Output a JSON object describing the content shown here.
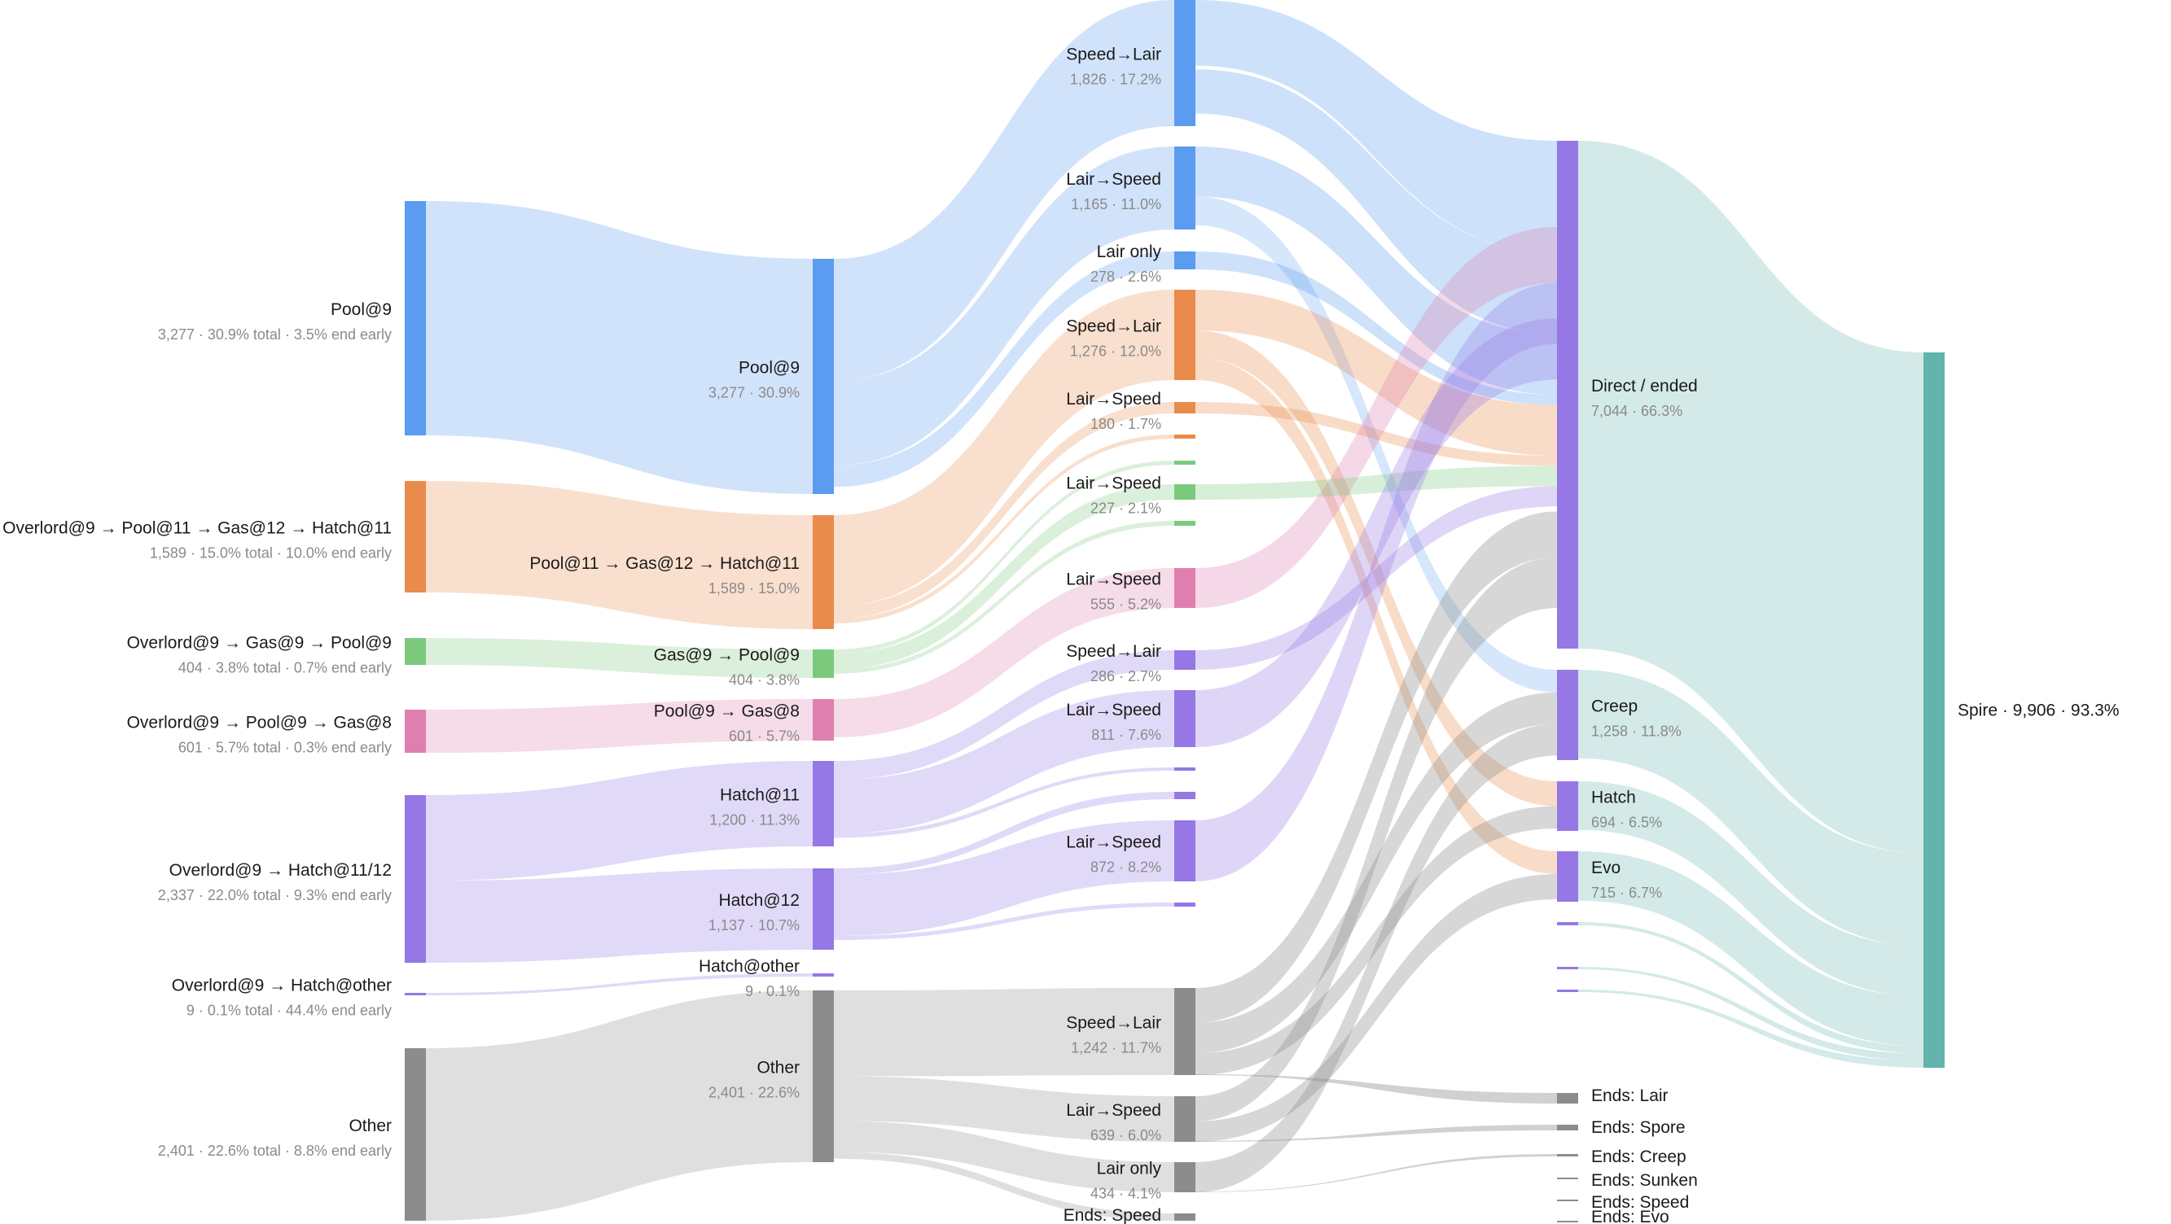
{
  "colors": {
    "blue": "#5b9bf0",
    "orange": "#e98b4a",
    "green": "#7cc97e",
    "pink": "#df7fb0",
    "purple": "#9577e6",
    "gray": "#8c8c8c",
    "teal": "#62b3ac"
  },
  "col0": [
    {
      "name": "Pool@9",
      "sub": "3,277 · 30.9% total · 3.5% end early",
      "color": "blue"
    },
    {
      "name": "Overlord@9 → Pool@11 → Gas@12 → Hatch@11",
      "sub": "1,589 · 15.0% total · 10.0% end early",
      "color": "orange"
    },
    {
      "name": "Overlord@9 → Gas@9 → Pool@9",
      "sub": "404 · 3.8% total · 0.7% end early",
      "color": "green"
    },
    {
      "name": "Overlord@9 → Pool@9 → Gas@8",
      "sub": "601 · 5.7% total · 0.3% end early",
      "color": "pink"
    },
    {
      "name": "Overlord@9 → Hatch@11/12",
      "sub": "2,337 · 22.0% total · 9.3% end early",
      "color": "purple"
    },
    {
      "name": "Overlord@9 → Hatch@other",
      "sub": "9 · 0.1% total · 44.4% end early",
      "color": "purple"
    },
    {
      "name": "Other",
      "sub": "2,401 · 22.6% total · 8.8% end early",
      "color": "gray"
    }
  ],
  "col1": [
    {
      "name": "Pool@9",
      "sub": "3,277 · 30.9%",
      "color": "blue"
    },
    {
      "name": "Pool@11 → Gas@12 → Hatch@11",
      "sub": "1,589 · 15.0%",
      "color": "orange"
    },
    {
      "name": "Gas@9 → Pool@9",
      "sub": "404 · 3.8%",
      "color": "green"
    },
    {
      "name": "Pool@9 → Gas@8",
      "sub": "601 · 5.7%",
      "color": "pink"
    },
    {
      "name": "Hatch@11",
      "sub": "1,200 · 11.3%",
      "color": "purple"
    },
    {
      "name": "Hatch@12",
      "sub": "1,137 · 10.7%",
      "color": "purple"
    },
    {
      "name": "Hatch@other",
      "sub": "9 · 0.1%",
      "color": "purple"
    },
    {
      "name": "Other",
      "sub": "2,401 · 22.6%",
      "color": "gray"
    }
  ],
  "col2": [
    {
      "name": "Speed→Lair",
      "sub": "1,826 · 17.2%",
      "color": "blue"
    },
    {
      "name": "Lair→Speed",
      "sub": "1,165 · 11.0%",
      "color": "blue"
    },
    {
      "name": "Lair only",
      "sub": "278 · 2.6%",
      "color": "blue"
    },
    {
      "name": "Speed→Lair",
      "sub": "1,276 · 12.0%",
      "color": "orange"
    },
    {
      "name": "Lair→Speed",
      "sub": "180 · 1.7%",
      "color": "orange"
    },
    {
      "name": "",
      "sub": "",
      "color": "orange"
    },
    {
      "name": "",
      "sub": "",
      "color": "green"
    },
    {
      "name": "Lair→Speed",
      "sub": "227 · 2.1%",
      "color": "green"
    },
    {
      "name": "",
      "sub": "",
      "color": "green"
    },
    {
      "name": "Lair→Speed",
      "sub": "555 · 5.2%",
      "color": "pink"
    },
    {
      "name": "Speed→Lair",
      "sub": "286 · 2.7%",
      "color": "purple"
    },
    {
      "name": "Lair→Speed",
      "sub": "811 · 7.6%",
      "color": "purple"
    },
    {
      "name": "",
      "sub": "",
      "color": "purple"
    },
    {
      "name": "",
      "sub": "",
      "color": "purple"
    },
    {
      "name": "Lair→Speed",
      "sub": "872 · 8.2%",
      "color": "purple"
    },
    {
      "name": "",
      "sub": "",
      "color": "purple"
    },
    {
      "name": "Speed→Lair",
      "sub": "1,242 · 11.7%",
      "color": "gray"
    },
    {
      "name": "Lair→Speed",
      "sub": "639 · 6.0%",
      "color": "gray"
    },
    {
      "name": "Lair only",
      "sub": "434 · 4.1%",
      "color": "gray"
    },
    {
      "name": "Ends: Speed",
      "sub": "",
      "color": "gray"
    }
  ],
  "col3": [
    {
      "name": "Direct / ended",
      "sub": "7,044 · 66.3%",
      "color": "purple"
    },
    {
      "name": "Creep",
      "sub": "1,258 · 11.8%",
      "color": "purple"
    },
    {
      "name": "Hatch",
      "sub": "694 · 6.5%",
      "color": "purple"
    },
    {
      "name": "Evo",
      "sub": "715 · 6.7%",
      "color": "purple"
    },
    {
      "name": "",
      "sub": "",
      "color": "purple"
    },
    {
      "name": "",
      "sub": "",
      "color": "purple"
    },
    {
      "name": "",
      "sub": "",
      "color": "purple"
    },
    {
      "name": "Ends: Lair",
      "sub": "",
      "color": "gray"
    },
    {
      "name": "Ends: Spore",
      "sub": "",
      "color": "gray"
    },
    {
      "name": "Ends: Creep",
      "sub": "",
      "color": "gray"
    },
    {
      "name": "Ends: Sunken",
      "sub": "",
      "color": "gray"
    },
    {
      "name": "Ends: Speed",
      "sub": "",
      "color": "gray"
    },
    {
      "name": "Ends: Evo",
      "sub": "",
      "color": "gray"
    }
  ],
  "col4": [
    {
      "name": "Spire · 9,906 · 93.3%",
      "sub": "",
      "color": "teal"
    }
  ]
}
